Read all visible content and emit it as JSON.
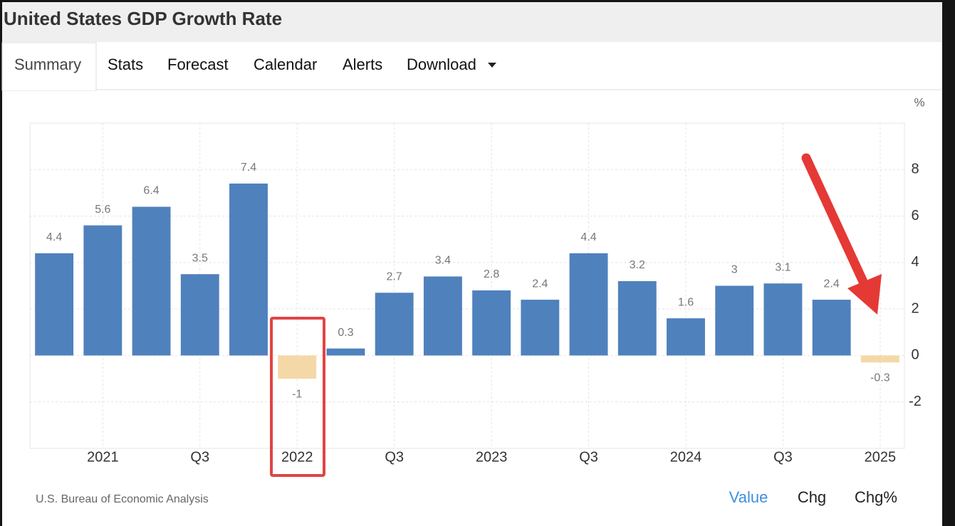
{
  "header": {
    "title": "United States GDP Growth Rate"
  },
  "tabs": [
    "Summary",
    "Stats",
    "Forecast",
    "Calendar",
    "Alerts",
    "Download"
  ],
  "chart_data": {
    "type": "bar",
    "unit": "%",
    "categories": [
      null,
      "2021",
      null,
      "Q3",
      null,
      "2022",
      null,
      "Q3",
      null,
      "2023",
      null,
      "Q3",
      null,
      "2024",
      null,
      "Q3",
      null,
      "2025"
    ],
    "values": [
      4.4,
      5.6,
      6.4,
      3.5,
      7.4,
      -1,
      0.3,
      2.7,
      3.4,
      2.8,
      2.4,
      4.4,
      3.2,
      1.6,
      3,
      3.1,
      2.4,
      -0.3
    ],
    "color": "#4f81bd",
    "negative_color": "#f5d8a8",
    "ylim": [
      -4,
      10
    ],
    "yticks": [
      -2,
      0,
      2,
      4,
      6,
      8
    ],
    "grid": true
  },
  "footer": {
    "source": "U.S. Bureau of Economic Analysis",
    "buttons": [
      "Value",
      "Chg",
      "Chg%"
    ]
  }
}
